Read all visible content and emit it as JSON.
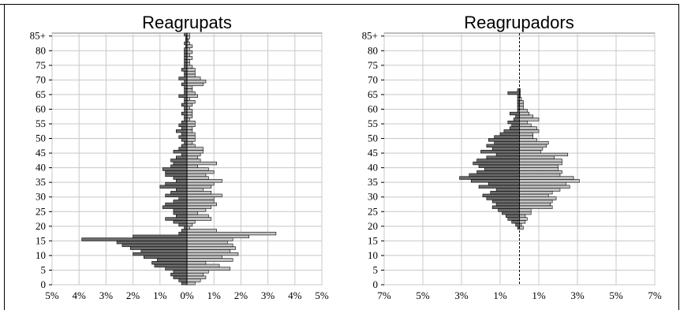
{
  "chart_data": [
    {
      "type": "bar",
      "orientation": "horizontal-population-pyramid",
      "title": "Reagrupats",
      "y_tick_labels": [
        "0",
        "5",
        "10",
        "15",
        "20",
        "25",
        "30",
        "35",
        "40",
        "45",
        "50",
        "55",
        "60",
        "65",
        "70",
        "75",
        "80",
        "85+"
      ],
      "x_tick_labels": [
        "5%",
        "4%",
        "3%",
        "2%",
        "1%",
        "0%",
        "1%",
        "2%",
        "3%",
        "4%",
        "5%"
      ],
      "xlim": [
        -5,
        5
      ],
      "ylim": [
        0,
        86
      ],
      "grid": true,
      "ages": [
        0,
        1,
        2,
        3,
        4,
        5,
        6,
        7,
        8,
        9,
        10,
        11,
        12,
        13,
        14,
        15,
        16,
        17,
        18,
        19,
        20,
        21,
        22,
        23,
        24,
        25,
        26,
        27,
        28,
        29,
        30,
        31,
        32,
        33,
        34,
        35,
        36,
        37,
        38,
        39,
        40,
        41,
        42,
        43,
        44,
        45,
        46,
        47,
        48,
        49,
        50,
        51,
        52,
        53,
        54,
        55,
        56,
        57,
        58,
        59,
        60,
        61,
        62,
        63,
        64,
        65,
        66,
        67,
        68,
        69,
        70,
        71,
        72,
        73,
        74,
        75,
        76,
        77,
        78,
        79,
        80,
        81,
        82,
        83,
        84,
        85
      ],
      "series": [
        {
          "values": [
            -0.2,
            -0.3,
            -0.5,
            -0.6,
            -0.5,
            -0.8,
            -1.2,
            -1.3,
            -1.1,
            -1.6,
            -2.0,
            -1.7,
            -2.1,
            -2.4,
            -2.6,
            -3.9,
            -2.0,
            -0.3,
            -0.2,
            -0.1,
            -0.3,
            -0.5,
            -0.8,
            -0.4,
            -0.5,
            -0.5,
            -0.9,
            -0.8,
            -0.5,
            -0.3,
            -0.8,
            -0.6,
            -0.4,
            -1.0,
            -0.8,
            -0.4,
            -0.5,
            -0.8,
            -0.8,
            -0.9,
            -0.6,
            -0.5,
            -0.6,
            -0.4,
            -0.2,
            -0.5,
            -0.3,
            -0.2,
            -0.1,
            -0.2,
            -0.3,
            -0.2,
            -0.4,
            -0.2,
            -0.3,
            -0.2,
            -0.1,
            -0.1,
            -0.2,
            -0.1,
            -0.1,
            -0.2,
            -0.1,
            -0.1,
            -0.3,
            -0.1,
            -0.1,
            -0.1,
            -0.2,
            -0.1,
            -0.3,
            -0.1,
            -0.1,
            -0.2,
            -0.1,
            -0.1,
            -0.1,
            -0.1,
            -0.1,
            -0.1,
            -0.1,
            -0.05,
            -0.1,
            -0.05,
            -0.05,
            -0.1
          ]
        },
        {
          "values": [
            0.3,
            0.5,
            0.7,
            0.6,
            0.8,
            1.6,
            1.2,
            0.7,
            1.7,
            1.3,
            1.9,
            1.6,
            1.8,
            1.7,
            1.5,
            1.7,
            2.3,
            3.3,
            1.1,
            0.1,
            0.2,
            0.3,
            0.9,
            0.8,
            0.4,
            0.7,
            0.9,
            1.1,
            1.0,
            1.0,
            1.3,
            0.9,
            0.6,
            0.9,
            1.0,
            1.3,
            0.8,
            0.7,
            1.0,
            0.8,
            0.4,
            1.1,
            0.5,
            0.4,
            0.5,
            0.6,
            0.6,
            0.3,
            0.2,
            0.3,
            0.3,
            0.3,
            0.2,
            0.2,
            0.3,
            0.3,
            0.1,
            0.2,
            0.2,
            0.2,
            0.1,
            0.2,
            0.3,
            0.1,
            0.4,
            0.3,
            0.2,
            0.2,
            0.6,
            0.7,
            0.5,
            0.3,
            0.3,
            0.3,
            0.2,
            0.1,
            0.1,
            0.2,
            0.1,
            0.2,
            0.1,
            0.2,
            0.1,
            0.05,
            0.1,
            0.1
          ]
        }
      ]
    },
    {
      "type": "bar",
      "orientation": "horizontal-population-pyramid",
      "title": "Reagrupadors",
      "y_tick_labels": [
        "0",
        "5",
        "10",
        "15",
        "20",
        "25",
        "30",
        "35",
        "40",
        "45",
        "50",
        "55",
        "60",
        "65",
        "70",
        "75",
        "80",
        "85+"
      ],
      "x_tick_labels": [
        "7%",
        "5%",
        "3%",
        "1%",
        "1%",
        "3%",
        "5%",
        "7%"
      ],
      "xlim": [
        -7,
        7
      ],
      "ylim": [
        0,
        86
      ],
      "grid": true,
      "ages": [
        19,
        20,
        21,
        22,
        23,
        24,
        25,
        26,
        27,
        28,
        29,
        30,
        31,
        32,
        33,
        34,
        35,
        36,
        37,
        38,
        39,
        40,
        41,
        42,
        43,
        44,
        45,
        46,
        47,
        48,
        49,
        50,
        51,
        52,
        53,
        54,
        55,
        56,
        57,
        58,
        59,
        60,
        61,
        62,
        63,
        64,
        65,
        66
      ],
      "series": [
        {
          "values": [
            -0.1,
            -0.2,
            -0.4,
            -0.6,
            -0.7,
            -0.9,
            -1.1,
            -1.4,
            -1.2,
            -1.4,
            -1.7,
            -1.9,
            -1.5,
            -1.2,
            -2.1,
            -1.6,
            -2.5,
            -3.1,
            -2.6,
            -2.2,
            -1.8,
            -2.1,
            -2.4,
            -2.2,
            -1.7,
            -1.2,
            -2.0,
            -1.4,
            -1.7,
            -1.3,
            -1.6,
            -1.3,
            -1.0,
            -0.8,
            -0.5,
            -0.4,
            -0.6,
            -0.3,
            -0.2,
            -0.5,
            -0.1,
            -0.1,
            -0.1,
            -0.1,
            -0.1,
            -0.1,
            -0.6,
            -0.1
          ]
        },
        {
          "values": [
            0.2,
            0.1,
            0.3,
            0.4,
            0.3,
            0.6,
            0.6,
            1.7,
            1.6,
            1.7,
            1.9,
            1.5,
            1.7,
            2.1,
            2.6,
            2.4,
            3.1,
            2.8,
            2.1,
            2.2,
            2.0,
            2.0,
            2.2,
            2.2,
            1.8,
            2.5,
            1.1,
            1.2,
            1.4,
            1.5,
            0.9,
            0.7,
            0.7,
            1.0,
            0.9,
            0.6,
            0.4,
            1.0,
            0.7,
            0.5,
            0.4,
            0.2,
            0.2,
            0.2,
            0.1,
            0.05,
            0.05,
            0.05
          ]
        }
      ]
    }
  ]
}
